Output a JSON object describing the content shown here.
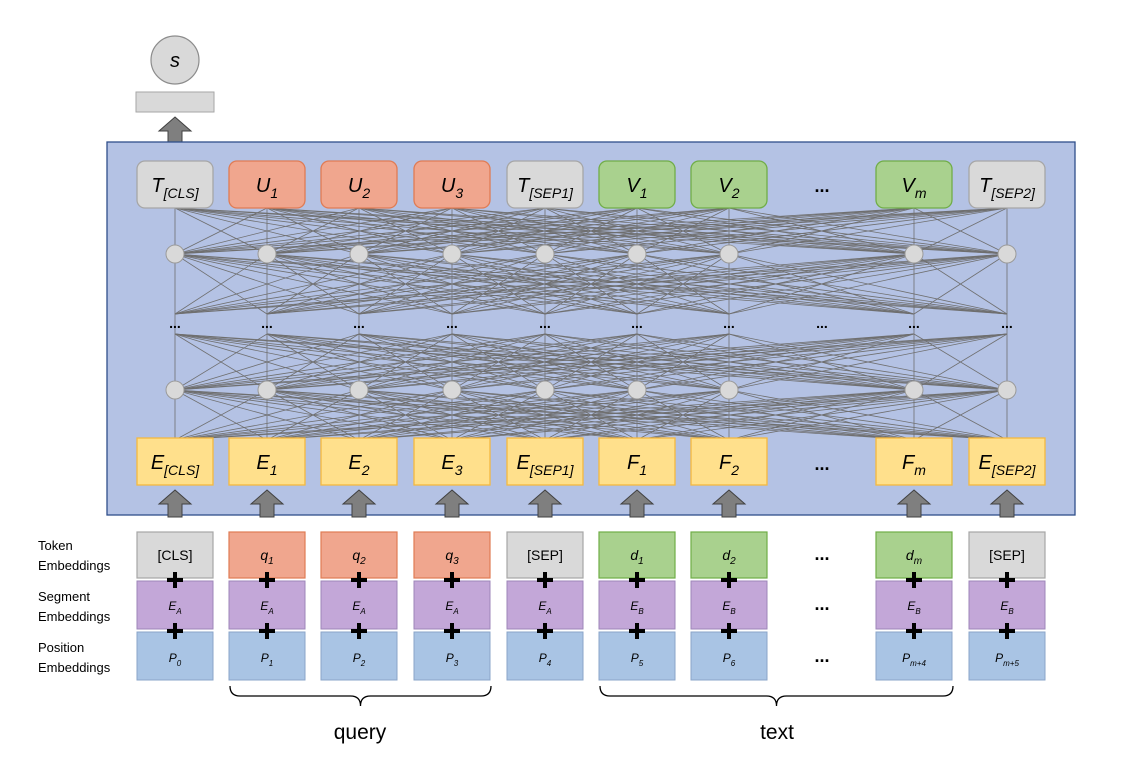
{
  "output": {
    "label": "s"
  },
  "columns": [
    {
      "top": "T",
      "top_sub": "[CLS]",
      "top_kind": "gray",
      "emb": "E",
      "emb_sub": "[CLS]",
      "tok": "[CLS]",
      "tok_kind": "gray",
      "seg": "E",
      "seg_sub": "A",
      "pos": "P",
      "pos_sub": "0"
    },
    {
      "top": "U",
      "top_sub": "1",
      "top_kind": "orange",
      "emb": "E",
      "emb_sub": "1",
      "tok": "q",
      "tok_sub": "1",
      "tok_kind": "orange",
      "seg": "E",
      "seg_sub": "A",
      "pos": "P",
      "pos_sub": "1"
    },
    {
      "top": "U",
      "top_sub": "2",
      "top_kind": "orange",
      "emb": "E",
      "emb_sub": "2",
      "tok": "q",
      "tok_sub": "2",
      "tok_kind": "orange",
      "seg": "E",
      "seg_sub": "A",
      "pos": "P",
      "pos_sub": "2"
    },
    {
      "top": "U",
      "top_sub": "3",
      "top_kind": "orange",
      "emb": "E",
      "emb_sub": "3",
      "tok": "q",
      "tok_sub": "3",
      "tok_kind": "orange",
      "seg": "E",
      "seg_sub": "A",
      "pos": "P",
      "pos_sub": "3"
    },
    {
      "top": "T",
      "top_sub": "[SEP1]",
      "top_kind": "gray",
      "emb": "E",
      "emb_sub": "[SEP1]",
      "tok": "[SEP]",
      "tok_kind": "gray",
      "seg": "E",
      "seg_sub": "A",
      "pos": "P",
      "pos_sub": "4"
    },
    {
      "top": "V",
      "top_sub": "1",
      "top_kind": "green",
      "emb": "F",
      "emb_sub": "1",
      "tok": "d",
      "tok_sub": "1",
      "tok_kind": "green",
      "seg": "E",
      "seg_sub": "B",
      "pos": "P",
      "pos_sub": "5"
    },
    {
      "top": "V",
      "top_sub": "2",
      "top_kind": "green",
      "emb": "F",
      "emb_sub": "2",
      "tok": "d",
      "tok_sub": "2",
      "tok_kind": "green",
      "seg": "E",
      "seg_sub": "B",
      "pos": "P",
      "pos_sub": "6"
    },
    {
      "top": "V",
      "top_sub": "m",
      "top_kind": "green",
      "emb": "F",
      "emb_sub": "m",
      "tok": "d",
      "tok_sub": "m",
      "tok_kind": "green",
      "seg": "E",
      "seg_sub": "B",
      "pos": "P",
      "pos_sub": "m+4"
    },
    {
      "top": "T",
      "top_sub": "[SEP2]",
      "top_kind": "gray",
      "emb": "E",
      "emb_sub": "[SEP2]",
      "tok": "[SEP]",
      "tok_kind": "gray",
      "seg": "E",
      "seg_sub": "B",
      "pos": "P",
      "pos_sub": "m+5"
    }
  ],
  "ellipsis": "...",
  "hidden_ellipsis": "...",
  "row_labels": {
    "token": [
      "Token",
      "Embeddings"
    ],
    "segment": [
      "Segment",
      "Embeddings"
    ],
    "position": [
      "Position",
      "Embeddings"
    ]
  },
  "braces": {
    "query": "query",
    "text": "text"
  },
  "colors": {
    "gray_fill": "#d9d9d9",
    "gray_stroke": "#a6a6a6",
    "orange_fill": "#f0a68e",
    "orange_stroke": "#e07b54",
    "green_fill": "#a9d18e",
    "green_stroke": "#70ad47",
    "yellow_fill": "#ffe08c",
    "yellow_stroke": "#f4b940",
    "purple_fill": "#c3a7d8",
    "blue_fill": "#a9c4e4",
    "panel_fill": "#b4c2e4",
    "panel_stroke": "#2f4f8a",
    "arrow_fill": "#7f7f7f",
    "node_fill": "#d9d9d9",
    "edge": "#6f6f6f"
  }
}
